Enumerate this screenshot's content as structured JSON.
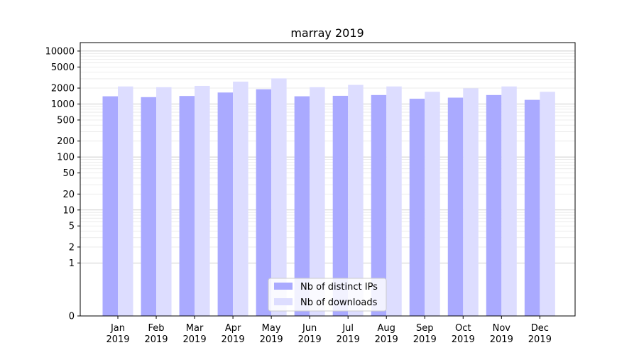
{
  "chart_data": {
    "type": "bar",
    "title": "marray 2019",
    "xlabel": "",
    "ylabel": "",
    "y_scale": "symlog",
    "ylim": [
      0,
      14000
    ],
    "yticks": [
      0,
      1,
      2,
      5,
      10,
      20,
      50,
      100,
      200,
      500,
      1000,
      2000,
      5000,
      10000
    ],
    "grid": true,
    "legend_position": "bottom-center",
    "categories": [
      "Jan\n2019",
      "Feb\n2019",
      "Mar\n2019",
      "Apr\n2019",
      "May\n2019",
      "Jun\n2019",
      "Jul\n2019",
      "Aug\n2019",
      "Sep\n2019",
      "Oct\n2019",
      "Nov\n2019",
      "Dec\n2019"
    ],
    "series": [
      {
        "name": "Nb of distinct IPs",
        "color": "#aaaaff",
        "values": [
          1400,
          1350,
          1420,
          1650,
          1900,
          1400,
          1430,
          1480,
          1260,
          1320,
          1480,
          1200
        ]
      },
      {
        "name": "Nb of downloads",
        "color": "#ddddff",
        "values": [
          2150,
          2080,
          2200,
          2650,
          3050,
          2080,
          2300,
          2150,
          1700,
          1980,
          2150,
          1700
        ]
      }
    ]
  }
}
